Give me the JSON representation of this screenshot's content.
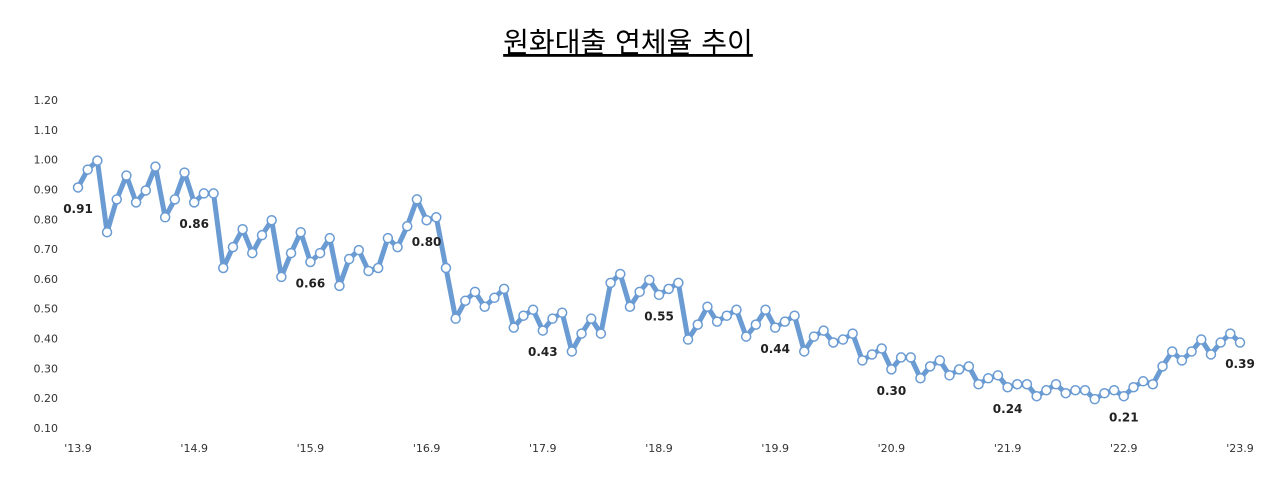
{
  "chart_data": {
    "type": "line",
    "title": "원화대출 연체율 추이",
    "categories": [
      "'13.9",
      null,
      null,
      null,
      null,
      null,
      null,
      null,
      null,
      null,
      null,
      null,
      "'14.9",
      null,
      null,
      null,
      null,
      null,
      null,
      null,
      null,
      null,
      null,
      null,
      "'15.9",
      null,
      null,
      null,
      null,
      null,
      null,
      null,
      null,
      null,
      null,
      null,
      "'16.9",
      null,
      null,
      null,
      null,
      null,
      null,
      null,
      null,
      null,
      null,
      null,
      "'17.9",
      null,
      null,
      null,
      null,
      null,
      null,
      null,
      null,
      null,
      null,
      null,
      "'18.9",
      null,
      null,
      null,
      null,
      null,
      null,
      null,
      null,
      null,
      null,
      null,
      "'19.9",
      null,
      null,
      null,
      null,
      null,
      null,
      null,
      null,
      null,
      null,
      null,
      "'20.9",
      null,
      null,
      null,
      null,
      null,
      null,
      null,
      null,
      null,
      null,
      null,
      "'21.9",
      null,
      null,
      null,
      null,
      null,
      null,
      null,
      null,
      null,
      null,
      null,
      "'22.9",
      null,
      null,
      null,
      null,
      null,
      null,
      null,
      null,
      null,
      null,
      null,
      "'23.9"
    ],
    "values": [
      0.91,
      0.97,
      1.0,
      0.76,
      0.87,
      0.95,
      0.86,
      0.9,
      0.98,
      0.81,
      0.87,
      0.96,
      0.86,
      0.89,
      0.89,
      0.64,
      0.71,
      0.77,
      0.69,
      0.75,
      0.8,
      0.61,
      0.69,
      0.76,
      0.66,
      0.69,
      0.74,
      0.58,
      0.67,
      0.7,
      0.63,
      0.64,
      0.74,
      0.71,
      0.78,
      0.87,
      0.8,
      0.81,
      0.64,
      0.47,
      0.53,
      0.56,
      0.51,
      0.54,
      0.57,
      0.44,
      0.48,
      0.5,
      0.43,
      0.47,
      0.49,
      0.36,
      0.42,
      0.47,
      0.42,
      0.59,
      0.62,
      0.51,
      0.56,
      0.6,
      0.55,
      0.57,
      0.59,
      0.4,
      0.45,
      0.51,
      0.46,
      0.48,
      0.5,
      0.41,
      0.45,
      0.5,
      0.44,
      0.46,
      0.48,
      0.36,
      0.41,
      0.43,
      0.39,
      0.4,
      0.42,
      0.33,
      0.35,
      0.37,
      0.3,
      0.34,
      0.34,
      0.27,
      0.31,
      0.33,
      0.28,
      0.3,
      0.31,
      0.25,
      0.27,
      0.28,
      0.24,
      0.25,
      0.25,
      0.21,
      0.23,
      0.25,
      0.22,
      0.23,
      0.23,
      0.2,
      0.22,
      0.23,
      0.21,
      0.24,
      0.26,
      0.25,
      0.31,
      0.36,
      0.33,
      0.36,
      0.4,
      0.35,
      0.39,
      0.42,
      0.39
    ],
    "value_labels": [
      "0.91",
      null,
      null,
      null,
      null,
      null,
      null,
      null,
      null,
      null,
      null,
      null,
      "0.86",
      null,
      null,
      null,
      null,
      null,
      null,
      null,
      null,
      null,
      null,
      null,
      "0.66",
      null,
      null,
      null,
      null,
      null,
      null,
      null,
      null,
      null,
      null,
      null,
      "0.80",
      null,
      null,
      null,
      null,
      null,
      null,
      null,
      null,
      null,
      null,
      null,
      "0.43",
      null,
      null,
      null,
      null,
      null,
      null,
      null,
      null,
      null,
      null,
      null,
      "0.55",
      null,
      null,
      null,
      null,
      null,
      null,
      null,
      null,
      null,
      null,
      null,
      "0.44",
      null,
      null,
      null,
      null,
      null,
      null,
      null,
      null,
      null,
      null,
      null,
      "0.30",
      null,
      null,
      null,
      null,
      null,
      null,
      null,
      null,
      null,
      null,
      null,
      "0.24",
      null,
      null,
      null,
      null,
      null,
      null,
      null,
      null,
      null,
      null,
      null,
      "0.21",
      null,
      null,
      null,
      null,
      null,
      null,
      null,
      null,
      null,
      null,
      null,
      "0.39"
    ],
    "color": "#6a9bd3",
    "ylim": [
      0.1,
      1.2
    ],
    "yticks": [
      {
        "value": 0.1,
        "label": "0.10"
      },
      {
        "value": 0.2,
        "label": "0.20"
      },
      {
        "value": 0.3,
        "label": "0.30"
      },
      {
        "value": 0.4,
        "label": "0.40"
      },
      {
        "value": 0.5,
        "label": "0.50"
      },
      {
        "value": 0.6,
        "label": "0.60"
      },
      {
        "value": 0.7,
        "label": "0.70"
      },
      {
        "value": 0.8,
        "label": "0.80"
      },
      {
        "value": 0.9,
        "label": "0.90"
      },
      {
        "value": 1.0,
        "label": "1.00"
      },
      {
        "value": 1.1,
        "label": "1.10"
      },
      {
        "value": 1.2,
        "label": "1.20"
      }
    ],
    "grid": false
  }
}
